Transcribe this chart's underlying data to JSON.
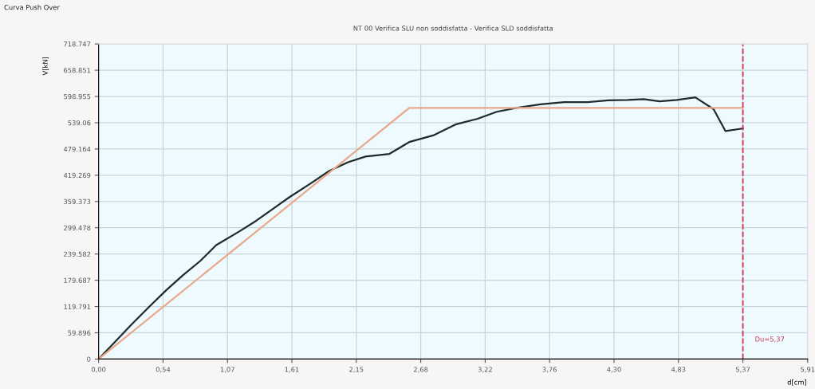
{
  "chart_data": {
    "type": "line",
    "title": "NT 00 Verifica SLU non soddisfatta - Verifica SLD soddisfatta",
    "xlabel": "d[cm]",
    "ylabel": "V[kN]",
    "annotations": [
      "Curva Push Over"
    ],
    "series": [
      {
        "color": "#1e2b2b",
        "x": [
          0,
          0.139,
          0.278,
          0.424,
          0.563,
          0.702,
          0.848,
          0.98,
          1.172,
          1.311,
          1.45,
          1.589,
          1.775,
          1.921,
          2.079,
          2.225,
          2.424,
          2.589,
          2.788,
          2.974,
          3.159,
          3.318,
          3.483,
          3.682,
          3.881,
          4.079,
          4.245,
          4.411,
          4.543,
          4.675,
          4.821,
          4.974,
          5.126,
          5.225,
          5.37
        ],
        "values": [
          0,
          40,
          80,
          120,
          157,
          191,
          224,
          260,
          291,
          315,
          342,
          369,
          402,
          429,
          449,
          462,
          468,
          495,
          510,
          535,
          548,
          564,
          573,
          581,
          586,
          586,
          590,
          591,
          593,
          588,
          591,
          597,
          570,
          520,
          526
        ]
      },
      {
        "color": "#e8a98c",
        "x": [
          0,
          2.59,
          5.37
        ],
        "values": [
          0,
          573,
          573
        ]
      }
    ],
    "xlim": [
      0,
      5.91
    ],
    "ylim": [
      0,
      718.747
    ],
    "xticks": [
      {
        "value": 0,
        "label": "0,00"
      },
      {
        "value": 0.537,
        "label": "0,54"
      },
      {
        "value": 1.074,
        "label": "1,07"
      },
      {
        "value": 1.611,
        "label": "1,61"
      },
      {
        "value": 2.148,
        "label": "2,15"
      },
      {
        "value": 2.685,
        "label": "2,68"
      },
      {
        "value": 3.222,
        "label": "3,22"
      },
      {
        "value": 3.759,
        "label": "3,76"
      },
      {
        "value": 4.296,
        "label": "4,30"
      },
      {
        "value": 4.833,
        "label": "4,83"
      },
      {
        "value": 5.37,
        "label": "5,37"
      },
      {
        "value": 5.91,
        "label": "5,91"
      }
    ],
    "yticks": [
      0,
      59.896,
      119.791,
      179.687,
      239.582,
      299.478,
      359.373,
      419.269,
      479.164,
      539.06,
      598.955,
      658.851,
      718.747
    ],
    "ref_lines": [
      {
        "axis": "x",
        "value": 5.37,
        "label": "Du=5,37",
        "color": "#cc3355",
        "line_style": "dashed"
      }
    ],
    "grid": true,
    "legend": false,
    "marker": "none",
    "line_style": "solid"
  }
}
